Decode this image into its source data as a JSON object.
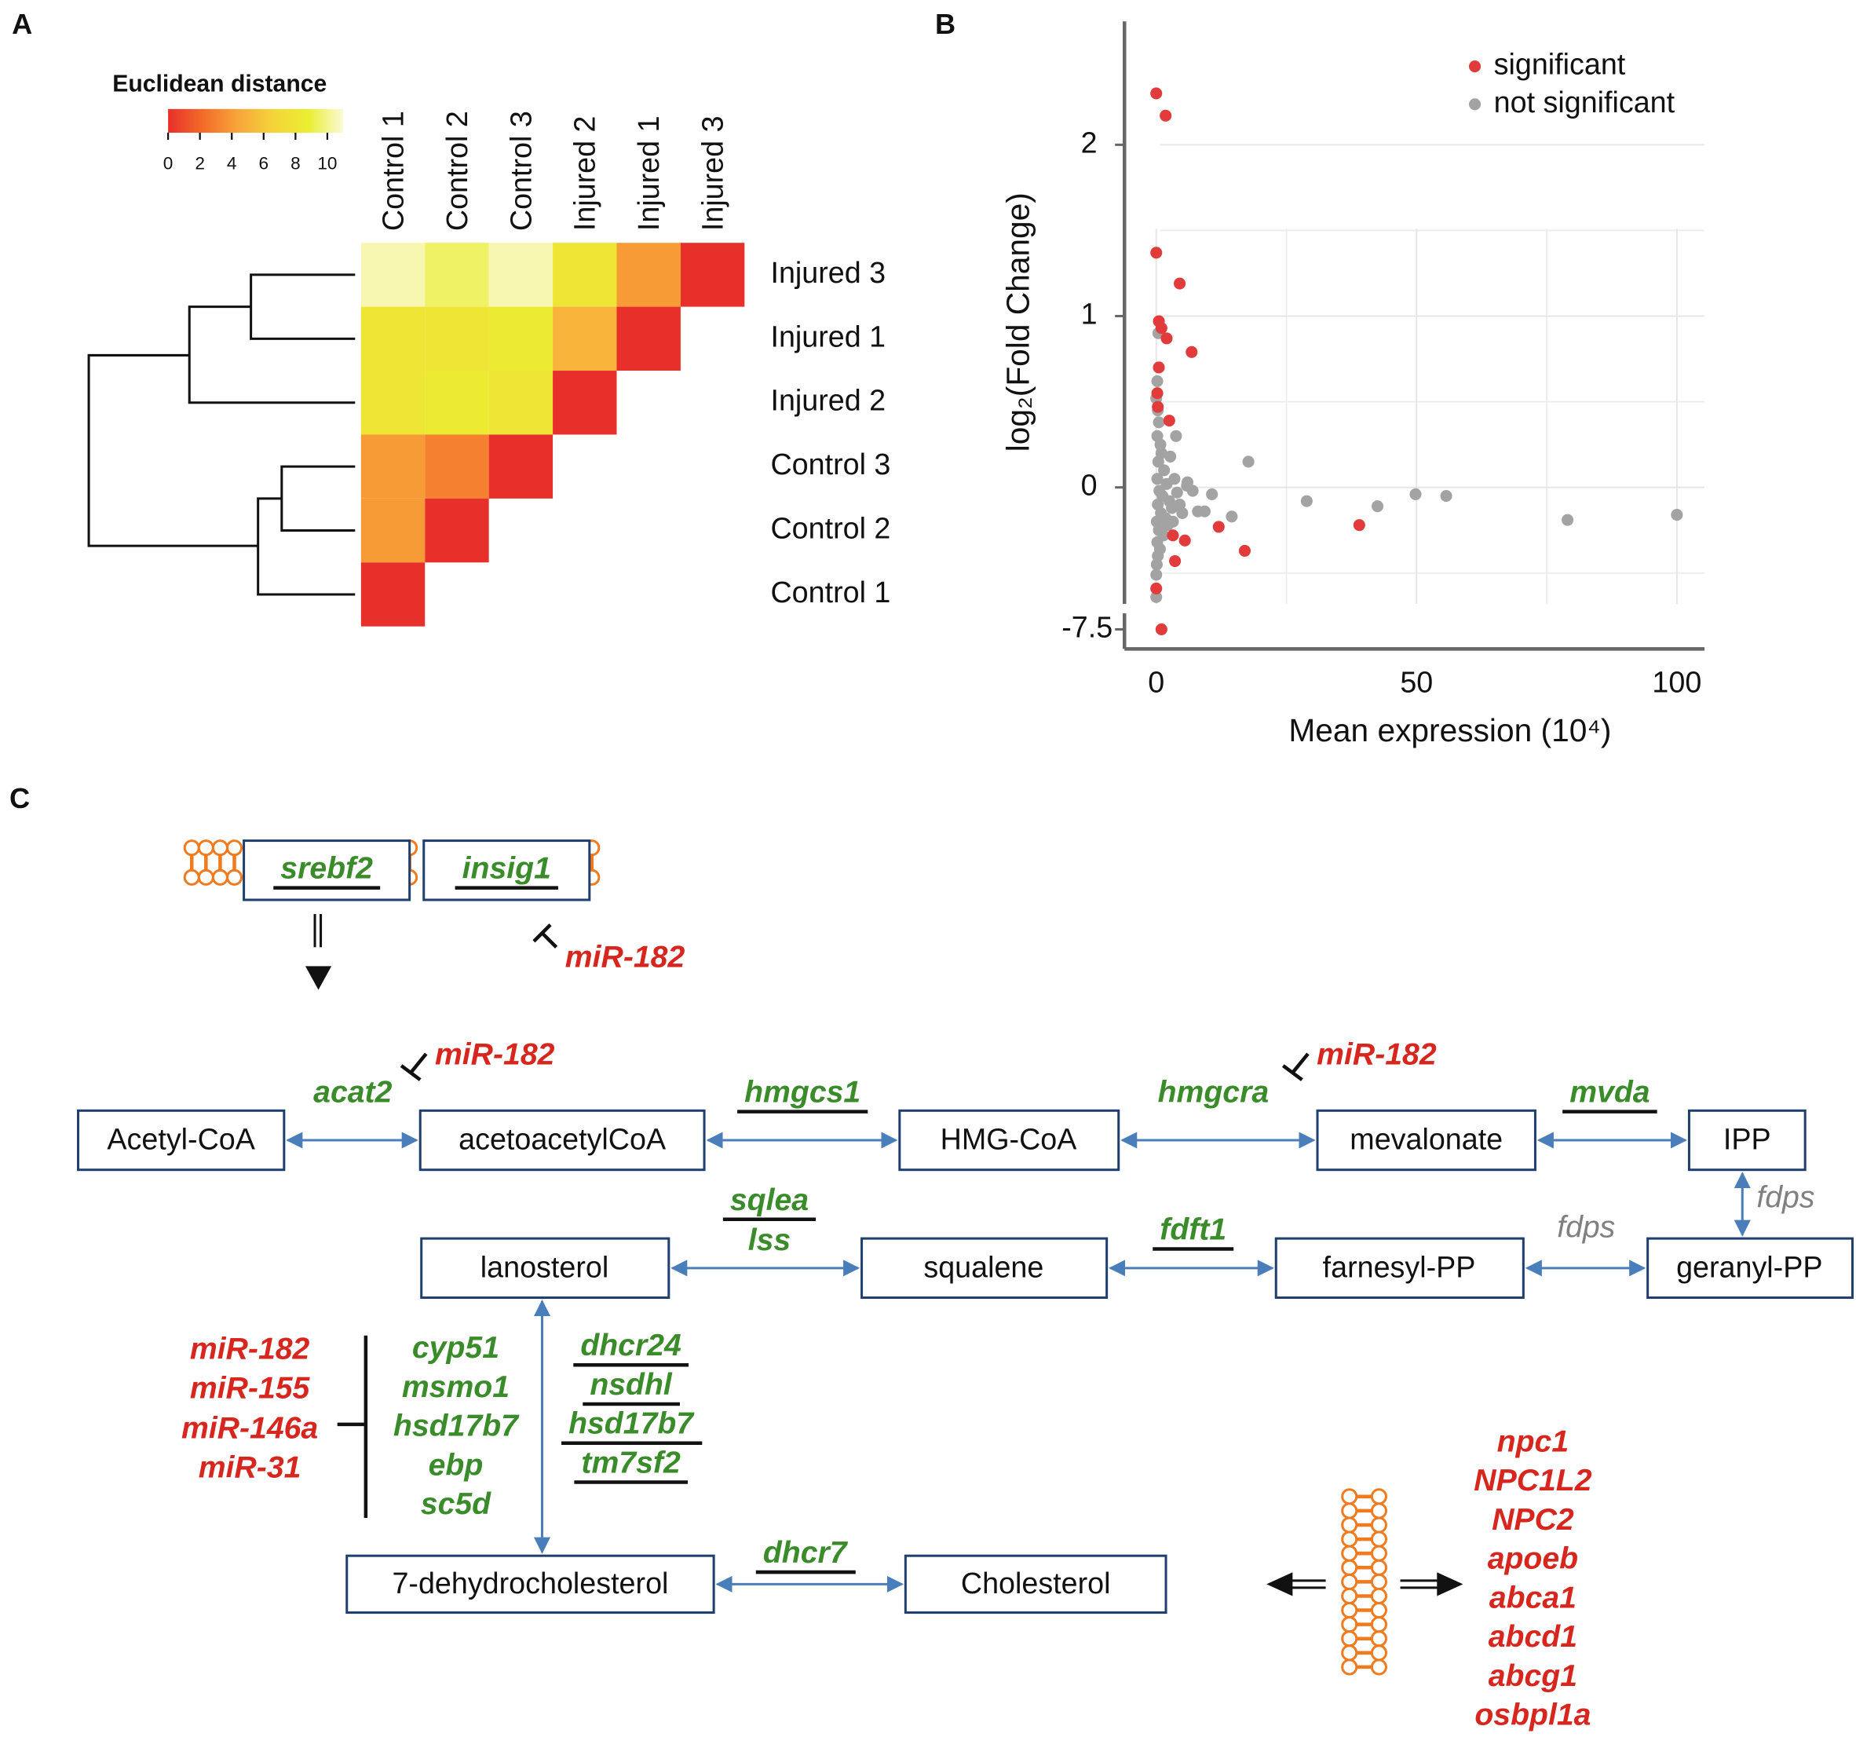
{
  "panel_labels": [
    "A",
    "B",
    "C"
  ],
  "chart_data": [
    {
      "type": "heatmap",
      "colorbar_title": "Euclidean distance",
      "columns": [
        "Control 1",
        "Control 2",
        "Control 3",
        "Injured 2",
        "Injured 1",
        "Injured 3"
      ],
      "rows": [
        "Injured 3",
        "Injured 1",
        "Injured 2",
        "Control 3",
        "Control 2",
        "Control 1"
      ],
      "values": [
        [
          10.5,
          9.5,
          10.5,
          8,
          4,
          0
        ],
        [
          8,
          8,
          8.5,
          5,
          0
        ],
        [
          8,
          8.5,
          8,
          0
        ],
        [
          4,
          3,
          0
        ],
        [
          4,
          0
        ],
        [
          0
        ]
      ],
      "colorscale": [
        "#e8302a",
        "#f36b2a",
        "#f8a63a",
        "#f5d43a",
        "#eaee30",
        "#fbfad8"
      ],
      "clim": [
        0,
        11
      ],
      "cticks": [
        0,
        2,
        4,
        6,
        8,
        10
      ]
    },
    {
      "type": "scatter",
      "x_label": "Mean expression (10⁴)",
      "y_label": "log₂(Fold Change)",
      "xlim": [
        -6.1,
        105.3
      ],
      "xticks": [
        0,
        50,
        100
      ],
      "ylim": [
        -0.68,
        2.72
      ],
      "yticks": [
        0,
        1,
        2
      ],
      "y_break": {
        "ylim": [
          -7.8,
          -7.2
        ],
        "yticks": [
          -7.5
        ]
      },
      "x_minor_grid": [
        25,
        75
      ],
      "y_minor_grid": [
        -0.5,
        0.5,
        1.5
      ],
      "grid": true,
      "legend": "upper right",
      "series": [
        {
          "name": "not significant",
          "color": "#a3a3a3",
          "x": [
            0,
            0.3,
            0.5,
            0.2,
            0.8,
            1,
            0.4,
            1.5,
            0.2,
            2,
            0.6,
            1.2,
            2.5,
            0.3,
            3,
            0.9,
            1.8,
            0.1,
            2.2,
            0.5,
            1.4,
            0.2,
            0.7,
            0.3,
            0.1,
            0,
            0,
            0.4,
            0.2,
            3.5,
            4,
            4.5,
            5.9,
            7,
            5,
            2.7,
            3.2,
            6,
            8,
            3.8,
            10.7,
            9.3,
            14.5,
            17.7,
            28.9,
            42.5,
            49.8,
            55.7,
            79,
            100
          ],
          "y": [
            0.52,
            0.45,
            0.38,
            0.3,
            0.25,
            0.2,
            0.15,
            0.1,
            0.05,
            0.02,
            -0.02,
            -0.05,
            -0.08,
            -0.1,
            -0.12,
            -0.15,
            -0.18,
            -0.2,
            -0.22,
            -0.25,
            -0.28,
            -0.32,
            -0.36,
            -0.4,
            -0.45,
            -0.51,
            -0.64,
            0.9,
            0.62,
            0.05,
            -0.03,
            -0.1,
            0.01,
            -0.02,
            -0.15,
            0.18,
            -0.2,
            0.03,
            -0.14,
            0.3,
            -0.04,
            -0.14,
            -0.17,
            0.15,
            -0.08,
            -0.11,
            -0.04,
            -0.05,
            -0.19,
            -0.16
          ]
        },
        {
          "name": "significant",
          "color": "#e23b3b",
          "x": [
            0,
            1.8,
            0,
            4.5,
            0.5,
            1,
            2,
            6.8,
            0.5,
            0.2,
            0.3,
            2.5,
            3.2,
            5.5,
            3.6,
            12,
            17,
            39,
            0,
            1
          ],
          "y": [
            2.3,
            2.17,
            1.37,
            1.19,
            0.97,
            0.93,
            0.87,
            0.79,
            0.7,
            0.55,
            0.47,
            0.39,
            -0.28,
            -0.31,
            -0.43,
            -0.23,
            -0.37,
            -0.22,
            -0.59,
            -7.5
          ]
        }
      ]
    }
  ],
  "pathway": {
    "membrane": {
      "genes": [
        {
          "name": "srebf2",
          "underlined": true
        },
        {
          "name": "insig1",
          "underlined": true
        }
      ],
      "mirna": "miR-182"
    },
    "nodes": [
      "Acetyl-CoA",
      "acetoacetylCoA",
      "HMG-CoA",
      "mevalonate",
      "IPP",
      "geranyl-PP",
      "farnesyl-PP",
      "squalene",
      "lanosterol",
      "7-dehydrocholesterol",
      "Cholesterol"
    ],
    "enzymes": [
      {
        "name": "acat2",
        "underlined": false,
        "mirna": "miR-182"
      },
      {
        "name": "hmgcs1",
        "underlined": true
      },
      {
        "name": "hmgcra",
        "underlined": false,
        "mirna": "miR-182"
      },
      {
        "name": "mvda",
        "underlined": true
      },
      {
        "name": "fdps",
        "underlined": false,
        "color": "#808080"
      },
      {
        "name": "fdps",
        "underlined": false,
        "color": "#808080"
      },
      {
        "name": "fdft1",
        "underlined": true
      },
      {
        "name": "sqlea",
        "underlined": true
      },
      {
        "name": "lss",
        "underlined": false
      },
      {
        "name": "dhcr7",
        "underlined": true
      }
    ],
    "late_mirnas": [
      "miR-182",
      "miR-155",
      "miR-146a",
      "miR-31"
    ],
    "late_genes": [
      {
        "name": "cyp51",
        "underlined": false
      },
      {
        "name": "msmo1",
        "underlined": false
      },
      {
        "name": "hsd17b7",
        "underlined": false
      },
      {
        "name": "ebp",
        "underlined": false
      },
      {
        "name": "sc5d",
        "underlined": false
      },
      {
        "name": "dhcr24",
        "underlined": true
      },
      {
        "name": "nsdhl",
        "underlined": true
      },
      {
        "name": "hsd17b7",
        "underlined": true
      },
      {
        "name": "tm7sf2",
        "underlined": true
      }
    ],
    "transport_genes": [
      "npc1",
      "NPC1L2",
      "NPC2",
      "apoeb",
      "abca1",
      "abcd1",
      "abcg1",
      "osbpl1a"
    ]
  }
}
